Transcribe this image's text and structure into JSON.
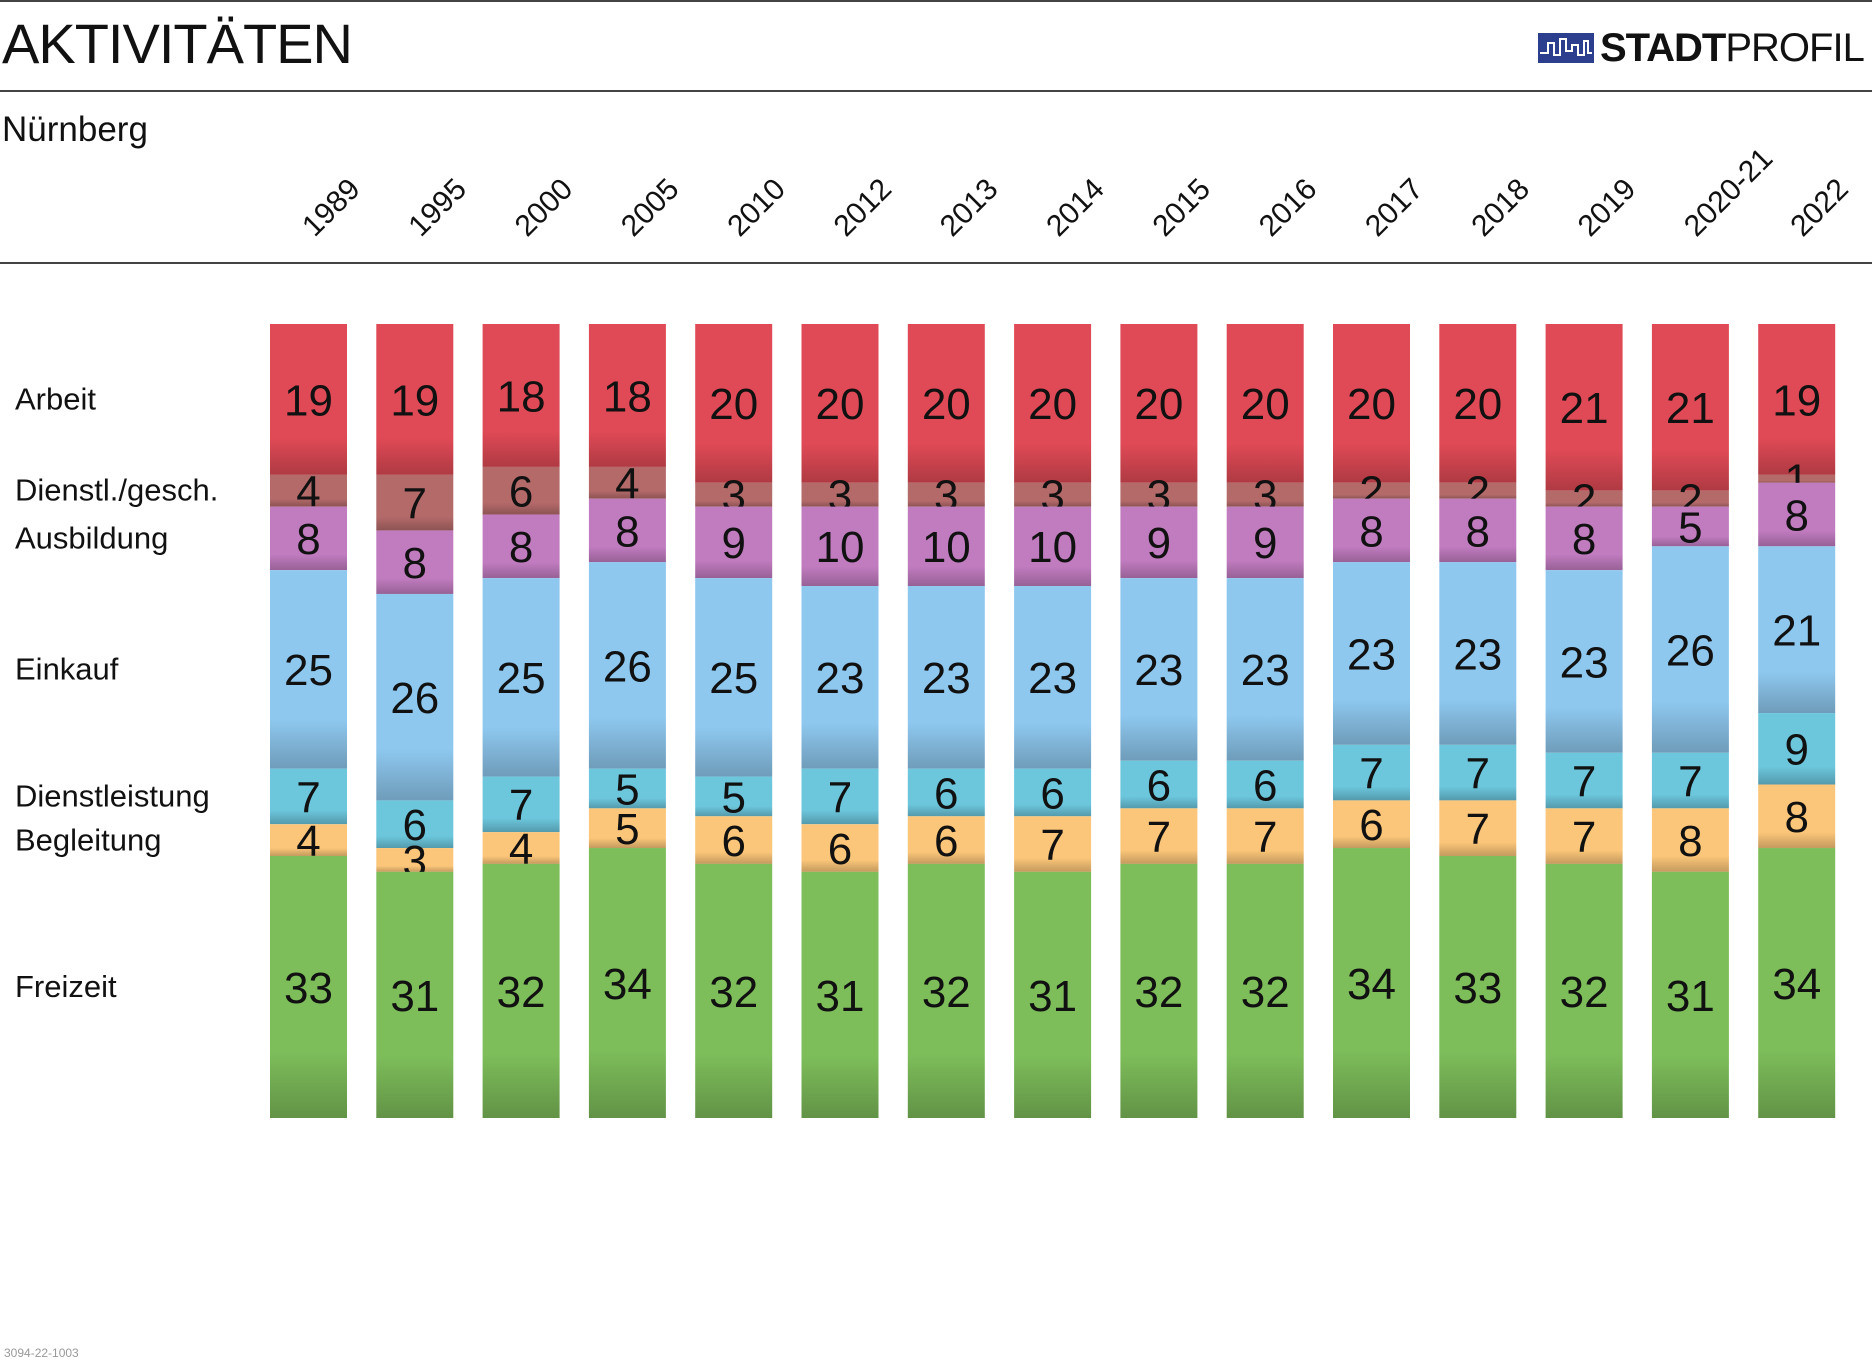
{
  "header": {
    "title": "AKTIVITÄTEN",
    "logo_bold": "STADT",
    "logo_light": "PROFIL",
    "logo_icon": "city-skyline-icon"
  },
  "subtitle": "Nürnberg",
  "footer": {
    "code": "3094-22-1003"
  },
  "chart_data": {
    "type": "bar",
    "stacked": true,
    "percent_stacked": true,
    "categories": [
      "1989",
      "1995",
      "2000",
      "2005",
      "2010",
      "2012",
      "2013",
      "2014",
      "2015",
      "2016",
      "2017",
      "2018",
      "2019",
      "2020-21",
      "2022"
    ],
    "series": [
      {
        "name": "Arbeit",
        "color": "#e04a56",
        "values": [
          19,
          19,
          18,
          18,
          20,
          20,
          20,
          20,
          20,
          20,
          20,
          20,
          21,
          21,
          19
        ]
      },
      {
        "name": "Dienstl./gesch.",
        "color": "#b56a6a",
        "values": [
          4,
          7,
          6,
          4,
          3,
          3,
          3,
          3,
          3,
          3,
          2,
          2,
          2,
          2,
          1
        ]
      },
      {
        "name": "Ausbildung",
        "color": "#c17cc0",
        "values": [
          8,
          8,
          8,
          8,
          9,
          10,
          10,
          10,
          9,
          9,
          8,
          8,
          8,
          5,
          8
        ]
      },
      {
        "name": "Einkauf",
        "color": "#8ec8ef",
        "values": [
          25,
          26,
          25,
          26,
          25,
          23,
          23,
          23,
          23,
          23,
          23,
          23,
          23,
          26,
          21
        ]
      },
      {
        "name": "Dienstleistung",
        "color": "#6cc6dc",
        "values": [
          7,
          6,
          7,
          5,
          5,
          7,
          6,
          6,
          6,
          6,
          7,
          7,
          7,
          7,
          9
        ]
      },
      {
        "name": "Begleitung",
        "color": "#fbc679",
        "values": [
          4,
          3,
          4,
          5,
          6,
          6,
          6,
          7,
          7,
          7,
          6,
          7,
          7,
          8,
          8
        ]
      },
      {
        "name": "Freizeit",
        "color": "#7dbd5a",
        "values": [
          33,
          31,
          32,
          34,
          32,
          31,
          32,
          31,
          32,
          32,
          34,
          33,
          32,
          31,
          34
        ]
      }
    ],
    "legend_position": "left",
    "grid": false,
    "xlabel": "",
    "ylabel": ""
  }
}
